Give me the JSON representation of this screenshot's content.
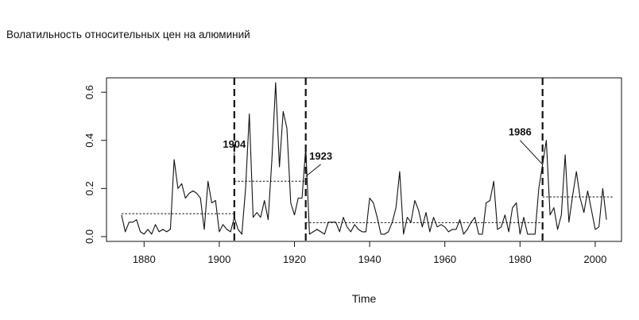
{
  "page": {
    "title": "Волатильность относительных цен на алюминий"
  },
  "chart_data": {
    "type": "line",
    "title": "Волатильность относительных цен на алюминий",
    "xlabel": "Time",
    "ylabel": "",
    "xlim": [
      1870,
      2007
    ],
    "ylim": [
      -0.02,
      0.66
    ],
    "x_ticks": [
      1880,
      1900,
      1920,
      1940,
      1960,
      1980,
      2000
    ],
    "y_ticks": [
      0.0,
      0.2,
      0.4,
      0.6
    ],
    "y_tick_labels": [
      "0.0",
      "0.2",
      "0.4",
      "0.6"
    ],
    "grid": false,
    "legend": "none",
    "x_start": 1874,
    "series": [
      {
        "values": [
          0.09,
          0.02,
          0.06,
          0.06,
          0.07,
          0.02,
          0.01,
          0.03,
          0.01,
          0.05,
          0.02,
          0.03,
          0.02,
          0.03,
          0.32,
          0.2,
          0.22,
          0.16,
          0.18,
          0.19,
          0.18,
          0.16,
          0.03,
          0.23,
          0.14,
          0.15,
          0.02,
          0.05,
          0.03,
          0.02,
          0.08,
          0.03,
          0.01,
          0.2,
          0.51,
          0.08,
          0.1,
          0.08,
          0.15,
          0.07,
          0.32,
          0.64,
          0.29,
          0.52,
          0.45,
          0.14,
          0.09,
          0.16,
          0.16,
          0.37,
          0.01,
          0.02,
          0.03,
          0.02,
          0.01,
          0.06,
          0.06,
          0.06,
          0.02,
          0.08,
          0.04,
          0.02,
          0.05,
          0.03,
          0.02,
          0.02,
          0.16,
          0.14,
          0.08,
          0.01,
          0.01,
          0.02,
          0.06,
          0.12,
          0.27,
          0.01,
          0.08,
          0.06,
          0.15,
          0.11,
          0.04,
          0.1,
          0.02,
          0.08,
          0.04,
          0.05,
          0.04,
          0.02,
          0.03,
          0.03,
          0.07,
          0.01,
          0.03,
          0.06,
          0.08,
          0.01,
          0.01,
          0.14,
          0.15,
          0.23,
          0.03,
          0.04,
          0.09,
          0.02,
          0.12,
          0.14,
          0.01,
          0.08,
          0.01,
          0.01,
          0.01,
          0.2,
          0.3,
          0.4,
          0.09,
          0.12,
          0.03,
          0.09,
          0.34,
          0.06,
          0.17,
          0.27,
          0.16,
          0.1,
          0.19,
          0.11,
          0.03,
          0.04,
          0.2,
          0.07
        ]
      }
    ],
    "segment_means": [
      {
        "from": 1874,
        "to": 1904,
        "value": 0.095
      },
      {
        "from": 1904,
        "to": 1923,
        "value": 0.23
      },
      {
        "from": 1923,
        "to": 1986,
        "value": 0.058
      },
      {
        "from": 1986,
        "to": 2005,
        "value": 0.165
      }
    ],
    "breakpoints": [
      1904,
      1923,
      1986
    ],
    "annotations": [
      {
        "label": "1904",
        "text_x": 1904,
        "text_y": 0.37,
        "point_x": 1904,
        "point_y": 0.3
      },
      {
        "label": "1923",
        "text_x": 1927,
        "text_y": 0.32,
        "point_x": 1923,
        "point_y": 0.25
      },
      {
        "label": "1986",
        "text_x": 1980,
        "text_y": 0.42,
        "point_x": 1986,
        "point_y": 0.3
      }
    ]
  }
}
